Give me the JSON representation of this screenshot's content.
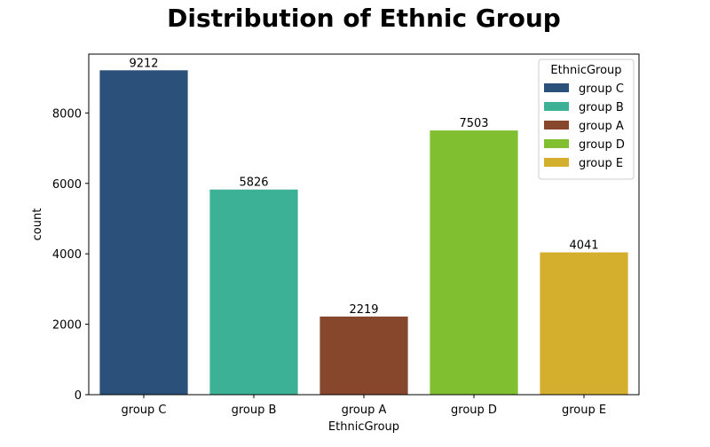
{
  "chart_data": {
    "type": "bar",
    "title": "Distribution of Ethnic Group",
    "xlabel": "EthnicGroup",
    "ylabel": "count",
    "categories": [
      "group C",
      "group B",
      "group A",
      "group D",
      "group E"
    ],
    "values": [
      9212,
      5826,
      2219,
      7503,
      4041
    ],
    "data_labels": [
      "9212",
      "5826",
      "2219",
      "7503",
      "4041"
    ],
    "colors": [
      "#2b5079",
      "#3cb195",
      "#86472d",
      "#80bf30",
      "#d4ae2d"
    ],
    "ylim": [
      0,
      9672
    ],
    "yticks": [
      0,
      2000,
      4000,
      6000,
      8000
    ],
    "ytick_labels": [
      "0",
      "2000",
      "4000",
      "6000",
      "8000"
    ],
    "grid": false,
    "legend": {
      "title": "EthnicGroup",
      "placement": "top-right",
      "entries": [
        "group C",
        "group B",
        "group A",
        "group D",
        "group E"
      ]
    }
  }
}
